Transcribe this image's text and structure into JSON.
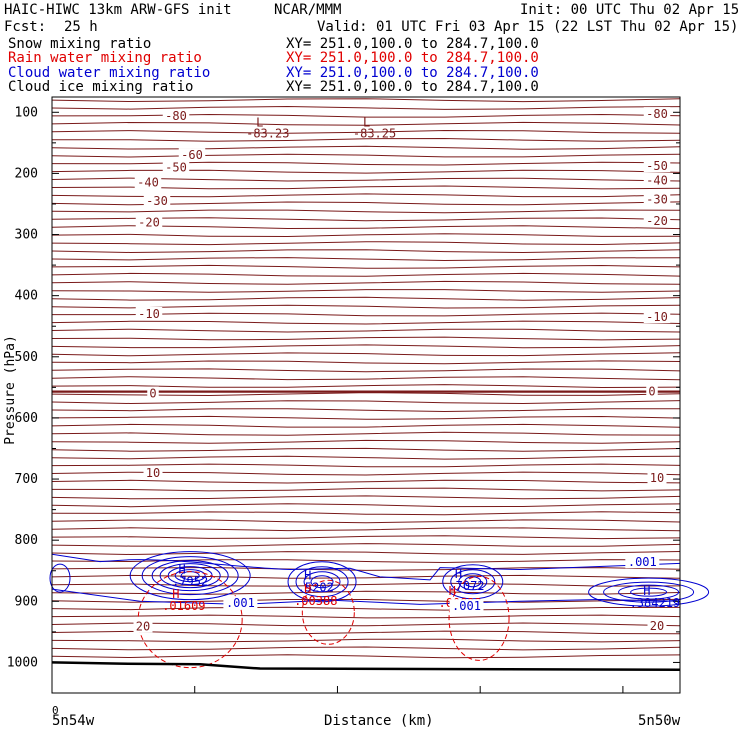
{
  "header": {
    "model_title": "HAIC-HIWC 13km ARW-GFS init",
    "org": "NCAR/MMM",
    "init": "Init: 00 UTC Thu 02 Apr 15",
    "fcst_label": "Fcst:",
    "fcst_value": "25 h",
    "valid": "Valid: 01 UTC Fri 03 Apr 15 (22 LST Thu 02 Apr 15)"
  },
  "fields": [
    {
      "name": "Snow mixing ratio",
      "xy": "XY= 251.0,100.0 to 284.7,100.0",
      "color": "#000000"
    },
    {
      "name": "Rain water mixing ratio",
      "xy": "XY= 251.0,100.0 to 284.7,100.0",
      "color": "#e00000"
    },
    {
      "name": "Cloud water mixing ratio",
      "xy": "XY= 251.0,100.0 to 284.7,100.0",
      "color": "#0000d0"
    },
    {
      "name": "Cloud ice mixing ratio",
      "xy": "XY= 251.0,100.0 to 284.7,100.0",
      "color": "#000000"
    }
  ],
  "chart_data": {
    "type": "line",
    "title": "",
    "xlabel": "Distance (km)",
    "ylabel": "Pressure (hPa)",
    "x_tick_labels": [
      "0"
    ],
    "x_endpoints": [
      "5n54w",
      "5n50w"
    ],
    "y_ticks": [
      100,
      200,
      300,
      400,
      500,
      600,
      700,
      800,
      900,
      1000
    ],
    "ylim": [
      1050,
      75
    ],
    "temperature_label_color": "#7a1a1a",
    "temperature_label_values": [
      "-80",
      "-60",
      "-50",
      "-40",
      "-30",
      "-20",
      "-10",
      "0",
      "10",
      "20"
    ],
    "temperature_labels_left": [
      {
        "text": "-80",
        "p": 106
      },
      {
        "text": "-60",
        "p": 170
      },
      {
        "text": "-50",
        "p": 190
      },
      {
        "text": "-40",
        "p": 215
      },
      {
        "text": "-30",
        "p": 245
      },
      {
        "text": "-20",
        "p": 280
      },
      {
        "text": "-10",
        "p": 430
      },
      {
        "text": "0",
        "p": 560
      },
      {
        "text": "10",
        "p": 690
      },
      {
        "text": "20",
        "p": 941
      }
    ],
    "temperature_labels_right": [
      {
        "text": "-80",
        "p": 103
      },
      {
        "text": "-50",
        "p": 188
      },
      {
        "text": "-40",
        "p": 212
      },
      {
        "text": "-30",
        "p": 243
      },
      {
        "text": "-20",
        "p": 278
      },
      {
        "text": "-10",
        "p": 435
      },
      {
        "text": "0",
        "p": 557
      },
      {
        "text": "10",
        "p": 698
      },
      {
        "text": "20",
        "p": 940
      }
    ],
    "extrema": [
      {
        "mark": "L",
        "value": "-83.23",
        "color": "#7a1a1a",
        "x": 0.35,
        "p": 82
      },
      {
        "mark": "L",
        "value": "-83.25",
        "color": "#7a1a1a",
        "x": 0.52,
        "p": 82
      },
      {
        "mark": "H",
        "value": ".7952",
        "color": "#0000d0",
        "x": 0.22,
        "p": 858
      },
      {
        "mark": "H",
        "value": ".01609",
        "color": "#e00000",
        "x": 0.21,
        "p": 898
      },
      {
        "mark": "H",
        "value": ".5202",
        "color": "#0000d0",
        "x": 0.42,
        "p": 868
      },
      {
        "mark": "H",
        "value": ".00388",
        "color": "#e00000",
        "x": 0.42,
        "p": 890
      },
      {
        "mark": "H",
        "value": ".7072",
        "color": "#0000d0",
        "x": 0.66,
        "p": 865
      },
      {
        "mark": "H",
        "value": ".00823",
        "color": "#e00000",
        "x": 0.65,
        "p": 893
      },
      {
        "mark": "H",
        "value": ".384219",
        "color": "#0000d0",
        "x": 0.96,
        "p": 893
      }
    ],
    "contour_labels": [
      {
        "text": ".001",
        "color": "#0000d0",
        "x": 0.3,
        "p": 903
      },
      {
        "text": ".001",
        "color": "#0000d0",
        "x": 0.66,
        "p": 908
      },
      {
        "text": ".001",
        "color": "#0000d0",
        "x": 0.94,
        "p": 836
      }
    ],
    "terrain_p_left": 1000,
    "terrain_p_right": 1012
  }
}
